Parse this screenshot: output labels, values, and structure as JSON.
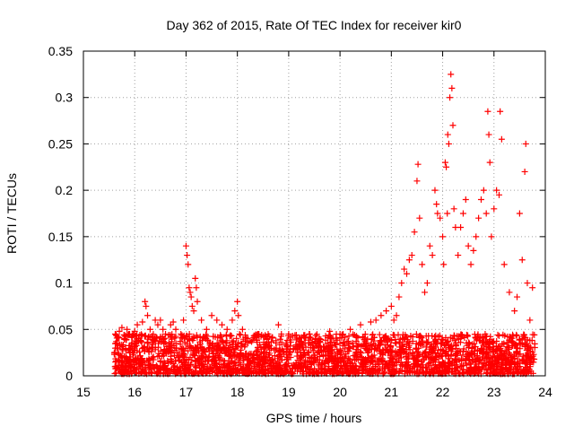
{
  "chart_data": {
    "type": "scatter",
    "title": "Day 362 of 2015, Rate Of TEC Index for receiver kir0",
    "xlabel": "GPS time / hours",
    "ylabel": "ROTI / TECUs",
    "xlim": [
      15,
      24
    ],
    "ylim": [
      0,
      0.35
    ],
    "xticks": [
      15,
      16,
      17,
      18,
      19,
      20,
      21,
      22,
      23,
      24
    ],
    "xtick_labels": [
      "15",
      "16",
      "17",
      "18",
      "19",
      "20",
      "21",
      "22",
      "23",
      "24"
    ],
    "yticks": [
      0,
      0.05,
      0.1,
      0.15,
      0.2,
      0.25,
      0.3,
      0.35
    ],
    "ytick_labels": [
      "0",
      "0.05",
      "0.1",
      "0.15",
      "0.2",
      "0.25",
      "0.3",
      "0.35"
    ],
    "grid": true,
    "marker": "+",
    "color": "#ff0000",
    "series": [
      {
        "name": "ROTI",
        "points": [
          [
            15.62,
            0.045
          ],
          [
            15.65,
            0.03
          ],
          [
            15.7,
            0.048
          ],
          [
            15.75,
            0.052
          ],
          [
            15.8,
            0.04
          ],
          [
            15.85,
            0.05
          ],
          [
            15.9,
            0.045
          ],
          [
            15.95,
            0.042
          ],
          [
            16.0,
            0.048
          ],
          [
            16.05,
            0.055
          ],
          [
            16.1,
            0.044
          ],
          [
            16.15,
            0.058
          ],
          [
            16.2,
            0.08
          ],
          [
            16.22,
            0.075
          ],
          [
            16.25,
            0.065
          ],
          [
            16.3,
            0.05
          ],
          [
            16.4,
            0.06
          ],
          [
            16.45,
            0.055
          ],
          [
            16.5,
            0.06
          ],
          [
            16.55,
            0.05
          ],
          [
            16.6,
            0.045
          ],
          [
            16.7,
            0.055
          ],
          [
            16.75,
            0.058
          ],
          [
            16.8,
            0.05
          ],
          [
            16.9,
            0.045
          ],
          [
            16.95,
            0.06
          ],
          [
            17.0,
            0.14
          ],
          [
            17.02,
            0.13
          ],
          [
            17.04,
            0.12
          ],
          [
            17.06,
            0.095
          ],
          [
            17.08,
            0.09
          ],
          [
            17.1,
            0.085
          ],
          [
            17.12,
            0.075
          ],
          [
            17.15,
            0.07
          ],
          [
            17.18,
            0.105
          ],
          [
            17.2,
            0.095
          ],
          [
            17.22,
            0.08
          ],
          [
            17.3,
            0.06
          ],
          [
            17.4,
            0.05
          ],
          [
            17.5,
            0.065
          ],
          [
            17.6,
            0.06
          ],
          [
            17.7,
            0.055
          ],
          [
            17.8,
            0.05
          ],
          [
            17.9,
            0.06
          ],
          [
            17.95,
            0.07
          ],
          [
            18.0,
            0.08
          ],
          [
            18.02,
            0.065
          ],
          [
            18.1,
            0.05
          ],
          [
            18.2,
            0.04
          ],
          [
            18.4,
            0.045
          ],
          [
            18.6,
            0.045
          ],
          [
            18.8,
            0.055
          ],
          [
            19.0,
            0.045
          ],
          [
            19.2,
            0.04
          ],
          [
            19.4,
            0.045
          ],
          [
            19.6,
            0.04
          ],
          [
            19.8,
            0.048
          ],
          [
            20.0,
            0.045
          ],
          [
            20.2,
            0.05
          ],
          [
            20.4,
            0.055
          ],
          [
            20.6,
            0.058
          ],
          [
            20.7,
            0.06
          ],
          [
            20.8,
            0.065
          ],
          [
            20.9,
            0.07
          ],
          [
            21.0,
            0.075
          ],
          [
            21.05,
            0.06
          ],
          [
            21.1,
            0.065
          ],
          [
            21.15,
            0.085
          ],
          [
            21.2,
            0.1
          ],
          [
            21.25,
            0.115
          ],
          [
            21.3,
            0.11
          ],
          [
            21.35,
            0.125
          ],
          [
            21.4,
            0.13
          ],
          [
            21.45,
            0.155
          ],
          [
            21.5,
            0.21
          ],
          [
            21.52,
            0.228
          ],
          [
            21.55,
            0.17
          ],
          [
            21.6,
            0.12
          ],
          [
            21.65,
            0.09
          ],
          [
            21.7,
            0.1
          ],
          [
            21.75,
            0.14
          ],
          [
            21.8,
            0.13
          ],
          [
            21.85,
            0.2
          ],
          [
            21.88,
            0.185
          ],
          [
            21.9,
            0.175
          ],
          [
            21.95,
            0.17
          ],
          [
            22.0,
            0.15
          ],
          [
            22.02,
            0.12
          ],
          [
            22.05,
            0.23
          ],
          [
            22.07,
            0.225
          ],
          [
            22.09,
            0.175
          ],
          [
            22.1,
            0.26
          ],
          [
            22.12,
            0.25
          ],
          [
            22.14,
            0.3
          ],
          [
            22.16,
            0.325
          ],
          [
            22.18,
            0.31
          ],
          [
            22.2,
            0.27
          ],
          [
            22.22,
            0.18
          ],
          [
            22.25,
            0.16
          ],
          [
            22.3,
            0.13
          ],
          [
            22.35,
            0.16
          ],
          [
            22.4,
            0.175
          ],
          [
            22.45,
            0.19
          ],
          [
            22.5,
            0.14
          ],
          [
            22.55,
            0.12
          ],
          [
            22.6,
            0.135
          ],
          [
            22.65,
            0.15
          ],
          [
            22.7,
            0.17
          ],
          [
            22.75,
            0.19
          ],
          [
            22.8,
            0.2
          ],
          [
            22.85,
            0.175
          ],
          [
            22.88,
            0.285
          ],
          [
            22.9,
            0.26
          ],
          [
            22.92,
            0.23
          ],
          [
            22.95,
            0.15
          ],
          [
            23.0,
            0.18
          ],
          [
            23.05,
            0.2
          ],
          [
            23.1,
            0.195
          ],
          [
            23.12,
            0.285
          ],
          [
            23.15,
            0.255
          ],
          [
            23.2,
            0.12
          ],
          [
            23.3,
            0.09
          ],
          [
            23.4,
            0.07
          ],
          [
            23.45,
            0.085
          ],
          [
            23.5,
            0.175
          ],
          [
            23.55,
            0.125
          ],
          [
            23.6,
            0.22
          ],
          [
            23.62,
            0.25
          ],
          [
            23.65,
            0.1
          ],
          [
            23.7,
            0.06
          ],
          [
            23.75,
            0.095
          ]
        ]
      }
    ],
    "dense_band": {
      "description": "dense continuous band of points near the baseline",
      "x_range": [
        15.6,
        23.8
      ],
      "y_range": [
        0.002,
        0.045
      ],
      "point_count": 2600
    }
  }
}
